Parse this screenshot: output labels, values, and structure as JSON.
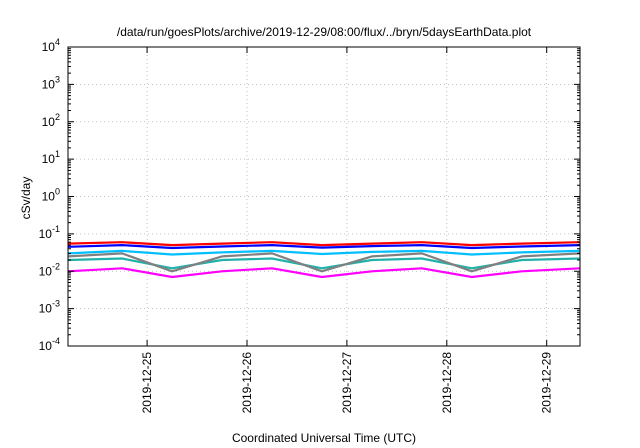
{
  "chart_data": {
    "type": "line",
    "title": "/data/run/goesPlots/archive/2019-12-29/08:00/flux/../bryn/5daysEarthData.plot",
    "xlabel": "Coordinated Universal Time (UTC)",
    "ylabel": "cSv/day",
    "yscale": "log",
    "ylim": [
      0.0001,
      10000
    ],
    "xlim": [
      "2019-12-24T05:00",
      "2019-12-29T08:00"
    ],
    "grid": true,
    "y_ticks": [
      {
        "base": "10",
        "exp": "-4"
      },
      {
        "base": "10",
        "exp": "-3"
      },
      {
        "base": "10",
        "exp": "-2"
      },
      {
        "base": "10",
        "exp": "-1"
      },
      {
        "base": "10",
        "exp": "0"
      },
      {
        "base": "10",
        "exp": "1"
      },
      {
        "base": "10",
        "exp": "2"
      },
      {
        "base": "10",
        "exp": "3"
      },
      {
        "base": "10",
        "exp": "4"
      }
    ],
    "x_ticks": [
      "2019-12-25",
      "2019-12-26",
      "2019-12-27",
      "2019-12-28",
      "2019-12-29"
    ],
    "series": [
      {
        "color": "#ff0000",
        "x": [
          "2019-12-24T05:00",
          "2019-12-24T18:00",
          "2019-12-25T06:00",
          "2019-12-25T18:00",
          "2019-12-26T06:00",
          "2019-12-26T18:00",
          "2019-12-27T06:00",
          "2019-12-27T18:00",
          "2019-12-28T06:00",
          "2019-12-28T18:00",
          "2019-12-29T08:00"
        ],
        "y": [
          0.055,
          0.06,
          0.05,
          0.055,
          0.06,
          0.05,
          0.055,
          0.06,
          0.05,
          0.055,
          0.06
        ]
      },
      {
        "color": "#0000ff",
        "x": [
          "2019-12-24T05:00",
          "2019-12-24T18:00",
          "2019-12-25T06:00",
          "2019-12-25T18:00",
          "2019-12-26T06:00",
          "2019-12-26T18:00",
          "2019-12-27T06:00",
          "2019-12-27T18:00",
          "2019-12-28T06:00",
          "2019-12-28T18:00",
          "2019-12-29T08:00"
        ],
        "y": [
          0.045,
          0.05,
          0.042,
          0.046,
          0.05,
          0.043,
          0.047,
          0.05,
          0.042,
          0.046,
          0.05
        ]
      },
      {
        "color": "#00bfff",
        "x": [
          "2019-12-24T05:00",
          "2019-12-24T18:00",
          "2019-12-25T06:00",
          "2019-12-25T18:00",
          "2019-12-26T06:00",
          "2019-12-26T18:00",
          "2019-12-27T06:00",
          "2019-12-27T18:00",
          "2019-12-28T06:00",
          "2019-12-28T18:00",
          "2019-12-29T08:00"
        ],
        "y": [
          0.03,
          0.035,
          0.028,
          0.032,
          0.035,
          0.029,
          0.033,
          0.035,
          0.028,
          0.032,
          0.035
        ]
      },
      {
        "color": "#20b2aa",
        "x": [
          "2019-12-24T05:00",
          "2019-12-24T18:00",
          "2019-12-25T06:00",
          "2019-12-25T18:00",
          "2019-12-26T06:00",
          "2019-12-26T18:00",
          "2019-12-27T06:00",
          "2019-12-27T18:00",
          "2019-12-28T06:00",
          "2019-12-28T18:00",
          "2019-12-29T08:00"
        ],
        "y": [
          0.02,
          0.022,
          0.012,
          0.02,
          0.022,
          0.012,
          0.02,
          0.022,
          0.012,
          0.02,
          0.022
        ]
      },
      {
        "color": "#808080",
        "x": [
          "2019-12-24T05:00",
          "2019-12-24T18:00",
          "2019-12-25T06:00",
          "2019-12-25T18:00",
          "2019-12-26T06:00",
          "2019-12-26T18:00",
          "2019-12-27T06:00",
          "2019-12-27T18:00",
          "2019-12-28T06:00",
          "2019-12-28T18:00",
          "2019-12-29T08:00"
        ],
        "y": [
          0.025,
          0.03,
          0.01,
          0.025,
          0.03,
          0.01,
          0.025,
          0.03,
          0.01,
          0.025,
          0.03
        ]
      },
      {
        "color": "#ff00ff",
        "x": [
          "2019-12-24T05:00",
          "2019-12-24T18:00",
          "2019-12-25T06:00",
          "2019-12-25T18:00",
          "2019-12-26T06:00",
          "2019-12-26T18:00",
          "2019-12-27T06:00",
          "2019-12-27T18:00",
          "2019-12-28T06:00",
          "2019-12-28T18:00",
          "2019-12-29T08:00"
        ],
        "y": [
          0.01,
          0.012,
          0.007,
          0.01,
          0.012,
          0.007,
          0.01,
          0.012,
          0.007,
          0.01,
          0.012
        ]
      }
    ]
  }
}
